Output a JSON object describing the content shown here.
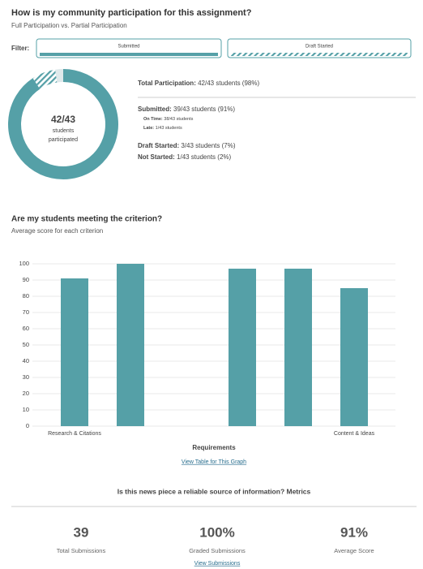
{
  "header": {
    "title": "How is my community participation for this assignment?",
    "subtitle": "Full Participation vs. Partial Participation"
  },
  "filter": {
    "label": "Filter:",
    "options": [
      "Submitted",
      "Draft Started"
    ]
  },
  "participation": {
    "total": {
      "label": "Total Participation:",
      "value": "42/43 students (98%)"
    },
    "submitted": {
      "label": "Submitted:",
      "value": "39/43 students (91%)"
    },
    "on_time": {
      "label": "On Time:",
      "value": "38/43 students"
    },
    "late": {
      "label": "Late:",
      "value": "1/43 students"
    },
    "draft_started": {
      "label": "Draft Started:",
      "value": "3/43 students (7%)"
    },
    "not_started": {
      "label": "Not Started:",
      "value": "1/43 students (2%)"
    }
  },
  "chart_data": [
    {
      "type": "donut",
      "center_value": "42/43",
      "center_label": [
        "students",
        "participated"
      ],
      "values": [
        39,
        3,
        1
      ],
      "colors": [
        "#55a0a7",
        "#55a0a7",
        "#dfe9eb"
      ],
      "hatched": [
        false,
        true,
        false
      ]
    },
    {
      "type": "bar",
      "title": "Are my students meeting the criterion?",
      "subtitle": "Average score for each criterion",
      "categories": [
        "Research & Citations",
        null,
        null,
        null,
        null,
        "Content & Ideas"
      ],
      "values": [
        91,
        100,
        null,
        97,
        97,
        85
      ],
      "color": "#55a0a7",
      "ylim": [
        0,
        100
      ],
      "yticks": [
        0,
        10,
        20,
        30,
        40,
        50,
        60,
        70,
        80,
        90,
        100
      ],
      "grid": true,
      "xlabel": "Requirements",
      "link": "View Table for This Graph"
    }
  ],
  "metrics": {
    "title": "Is this news piece a reliable source of information? Metrics",
    "items": [
      {
        "value": "39",
        "label": "Total Submissions"
      },
      {
        "value": "100%",
        "label": "Graded Submissions"
      },
      {
        "value": "91%",
        "label": "Average Score"
      }
    ],
    "link": "View Submissions"
  }
}
